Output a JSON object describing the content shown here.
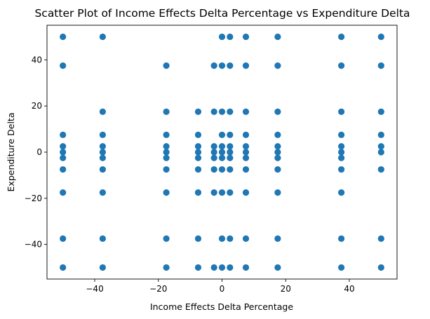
{
  "chart_data": {
    "type": "scatter",
    "title": "Scatter Plot of Income Effects Delta Percentage vs Expenditure Delta",
    "xlabel": "Income Effects Delta Percentage",
    "ylabel": "Expenditure Delta",
    "xlim": [
      -55,
      55
    ],
    "ylim": [
      -55,
      55
    ],
    "x_ticks": [
      -40,
      -20,
      0,
      20,
      40
    ],
    "y_ticks": [
      -40,
      -20,
      0,
      20,
      40
    ],
    "x_tick_labels": [
      "−40",
      "−20",
      "0",
      "20",
      "40"
    ],
    "y_tick_labels": [
      "−40",
      "−20",
      "0",
      "20",
      "40"
    ],
    "grid": false,
    "legend": "none",
    "point_color": "#1f77b4",
    "series": [
      {
        "points": [
          [
            -50,
            50
          ],
          [
            -50,
            37.5
          ],
          [
            -50,
            7.5
          ],
          [
            -50,
            2.5
          ],
          [
            -50,
            0
          ],
          [
            -50,
            -2.5
          ],
          [
            -50,
            -7.5
          ],
          [
            -50,
            -17.5
          ],
          [
            -50,
            -37.5
          ],
          [
            -50,
            -50
          ],
          [
            -37.5,
            50
          ],
          [
            -37.5,
            17.5
          ],
          [
            -37.5,
            7.5
          ],
          [
            -37.5,
            2.5
          ],
          [
            -37.5,
            0
          ],
          [
            -37.5,
            -2.5
          ],
          [
            -37.5,
            -7.5
          ],
          [
            -37.5,
            -17.5
          ],
          [
            -37.5,
            -37.5
          ],
          [
            -37.5,
            -50
          ],
          [
            -17.5,
            37.5
          ],
          [
            -17.5,
            17.5
          ],
          [
            -17.5,
            7.5
          ],
          [
            -17.5,
            2.5
          ],
          [
            -17.5,
            0
          ],
          [
            -17.5,
            -2.5
          ],
          [
            -17.5,
            -7.5
          ],
          [
            -17.5,
            -17.5
          ],
          [
            -17.5,
            -37.5
          ],
          [
            -17.5,
            -50
          ],
          [
            -7.5,
            17.5
          ],
          [
            -7.5,
            7.5
          ],
          [
            -7.5,
            2.5
          ],
          [
            -7.5,
            0
          ],
          [
            -7.5,
            -2.5
          ],
          [
            -7.5,
            -7.5
          ],
          [
            -7.5,
            -17.5
          ],
          [
            -7.5,
            -37.5
          ],
          [
            -7.5,
            -50
          ],
          [
            -2.5,
            37.5
          ],
          [
            -2.5,
            17.5
          ],
          [
            -2.5,
            2.5
          ],
          [
            -2.5,
            0
          ],
          [
            -2.5,
            -2.5
          ],
          [
            -2.5,
            -7.5
          ],
          [
            -2.5,
            -17.5
          ],
          [
            -2.5,
            -50
          ],
          [
            0,
            50
          ],
          [
            0,
            37.5
          ],
          [
            0,
            17.5
          ],
          [
            0,
            7.5
          ],
          [
            0,
            2.5
          ],
          [
            0,
            0
          ],
          [
            0,
            -2.5
          ],
          [
            0,
            -7.5
          ],
          [
            0,
            -17.5
          ],
          [
            0,
            -37.5
          ],
          [
            0,
            -50
          ],
          [
            2.5,
            50
          ],
          [
            2.5,
            37.5
          ],
          [
            2.5,
            17.5
          ],
          [
            2.5,
            7.5
          ],
          [
            2.5,
            2.5
          ],
          [
            2.5,
            0
          ],
          [
            2.5,
            -2.5
          ],
          [
            2.5,
            -7.5
          ],
          [
            2.5,
            -17.5
          ],
          [
            2.5,
            -37.5
          ],
          [
            2.5,
            -50
          ],
          [
            7.5,
            50
          ],
          [
            7.5,
            37.5
          ],
          [
            7.5,
            17.5
          ],
          [
            7.5,
            7.5
          ],
          [
            7.5,
            2.5
          ],
          [
            7.5,
            0
          ],
          [
            7.5,
            -2.5
          ],
          [
            7.5,
            -7.5
          ],
          [
            7.5,
            -17.5
          ],
          [
            7.5,
            -37.5
          ],
          [
            7.5,
            -50
          ],
          [
            17.5,
            50
          ],
          [
            17.5,
            37.5
          ],
          [
            17.5,
            17.5
          ],
          [
            17.5,
            7.5
          ],
          [
            17.5,
            2.5
          ],
          [
            17.5,
            0
          ],
          [
            17.5,
            -2.5
          ],
          [
            17.5,
            -7.5
          ],
          [
            17.5,
            -17.5
          ],
          [
            17.5,
            -37.5
          ],
          [
            17.5,
            -50
          ],
          [
            37.5,
            50
          ],
          [
            37.5,
            37.5
          ],
          [
            37.5,
            17.5
          ],
          [
            37.5,
            7.5
          ],
          [
            37.5,
            2.5
          ],
          [
            37.5,
            0
          ],
          [
            37.5,
            -2.5
          ],
          [
            37.5,
            -7.5
          ],
          [
            37.5,
            -17.5
          ],
          [
            37.5,
            -37.5
          ],
          [
            37.5,
            -50
          ],
          [
            50,
            50
          ],
          [
            50,
            37.5
          ],
          [
            50,
            17.5
          ],
          [
            50,
            7.5
          ],
          [
            50,
            2.5
          ],
          [
            50,
            0
          ],
          [
            50,
            -7.5
          ],
          [
            50,
            -37.5
          ],
          [
            50,
            -50
          ]
        ]
      }
    ]
  }
}
